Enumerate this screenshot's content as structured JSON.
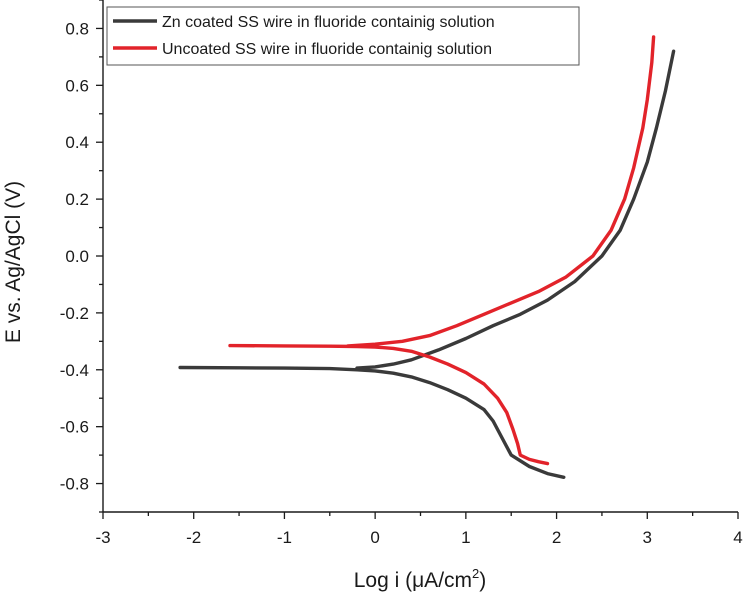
{
  "chart_data": {
    "type": "line",
    "xlabel": "Log i (μA/cm",
    "xlabel_sup": "2",
    "xlabel_close": ")",
    "ylabel": "E vs. Ag/AgCl (V)",
    "xlim": [
      -3,
      4
    ],
    "ylim": [
      -0.9,
      0.9
    ],
    "x_ticks": [
      "-3",
      "-2",
      "-1",
      "0",
      "1",
      "2",
      "3",
      "4"
    ],
    "y_ticks": [
      "-0.8",
      "-0.6",
      "-0.4",
      "-0.2",
      "0.0",
      "0.2",
      "0.4",
      "0.6",
      "0.8"
    ],
    "grid": false,
    "legend_position": "top-left",
    "series": [
      {
        "name": "Zn coated SS wire in fluoride containig solution",
        "color": "#3a3a3a",
        "x": [
          -2.15,
          -1.5,
          -1.0,
          -0.5,
          -0.2,
          0.0,
          0.2,
          0.4,
          0.6,
          0.8,
          1.0,
          1.2,
          1.3,
          1.4,
          1.5,
          1.7,
          1.9,
          2.08
        ],
        "y": [
          -0.392,
          -0.393,
          -0.394,
          -0.396,
          -0.4,
          -0.404,
          -0.412,
          -0.425,
          -0.445,
          -0.47,
          -0.5,
          -0.54,
          -0.58,
          -0.64,
          -0.7,
          -0.74,
          -0.765,
          -0.778
        ],
        "anodic_x": [
          -0.2,
          0.0,
          0.2,
          0.4,
          0.7,
          1.0,
          1.3,
          1.6,
          1.9,
          2.2,
          2.5,
          2.7,
          2.85,
          3.0,
          3.1,
          3.2,
          3.29
        ],
        "anodic_y": [
          -0.394,
          -0.39,
          -0.38,
          -0.365,
          -0.33,
          -0.29,
          -0.245,
          -0.205,
          -0.155,
          -0.09,
          0.0,
          0.09,
          0.2,
          0.33,
          0.45,
          0.58,
          0.72
        ]
      },
      {
        "name": "Uncoated SS wire in fluoride containig solution",
        "color": "#e2232a",
        "x": [
          -1.6,
          -1.0,
          -0.5,
          -0.2,
          0.0,
          0.2,
          0.4,
          0.6,
          0.8,
          1.0,
          1.2,
          1.35,
          1.45,
          1.52,
          1.57,
          1.6,
          1.7,
          1.8,
          1.9
        ],
        "y": [
          -0.315,
          -0.316,
          -0.317,
          -0.318,
          -0.32,
          -0.325,
          -0.335,
          -0.355,
          -0.38,
          -0.41,
          -0.45,
          -0.5,
          -0.55,
          -0.61,
          -0.66,
          -0.7,
          -0.715,
          -0.723,
          -0.73
        ],
        "anodic_x": [
          -0.3,
          0.0,
          0.3,
          0.6,
          0.9,
          1.2,
          1.5,
          1.8,
          2.1,
          2.4,
          2.6,
          2.75,
          2.85,
          2.95,
          3.0,
          3.05,
          3.07
        ],
        "anodic_y": [
          -0.316,
          -0.31,
          -0.3,
          -0.28,
          -0.245,
          -0.205,
          -0.165,
          -0.125,
          -0.075,
          0.0,
          0.09,
          0.2,
          0.31,
          0.45,
          0.55,
          0.68,
          0.77
        ]
      }
    ]
  }
}
